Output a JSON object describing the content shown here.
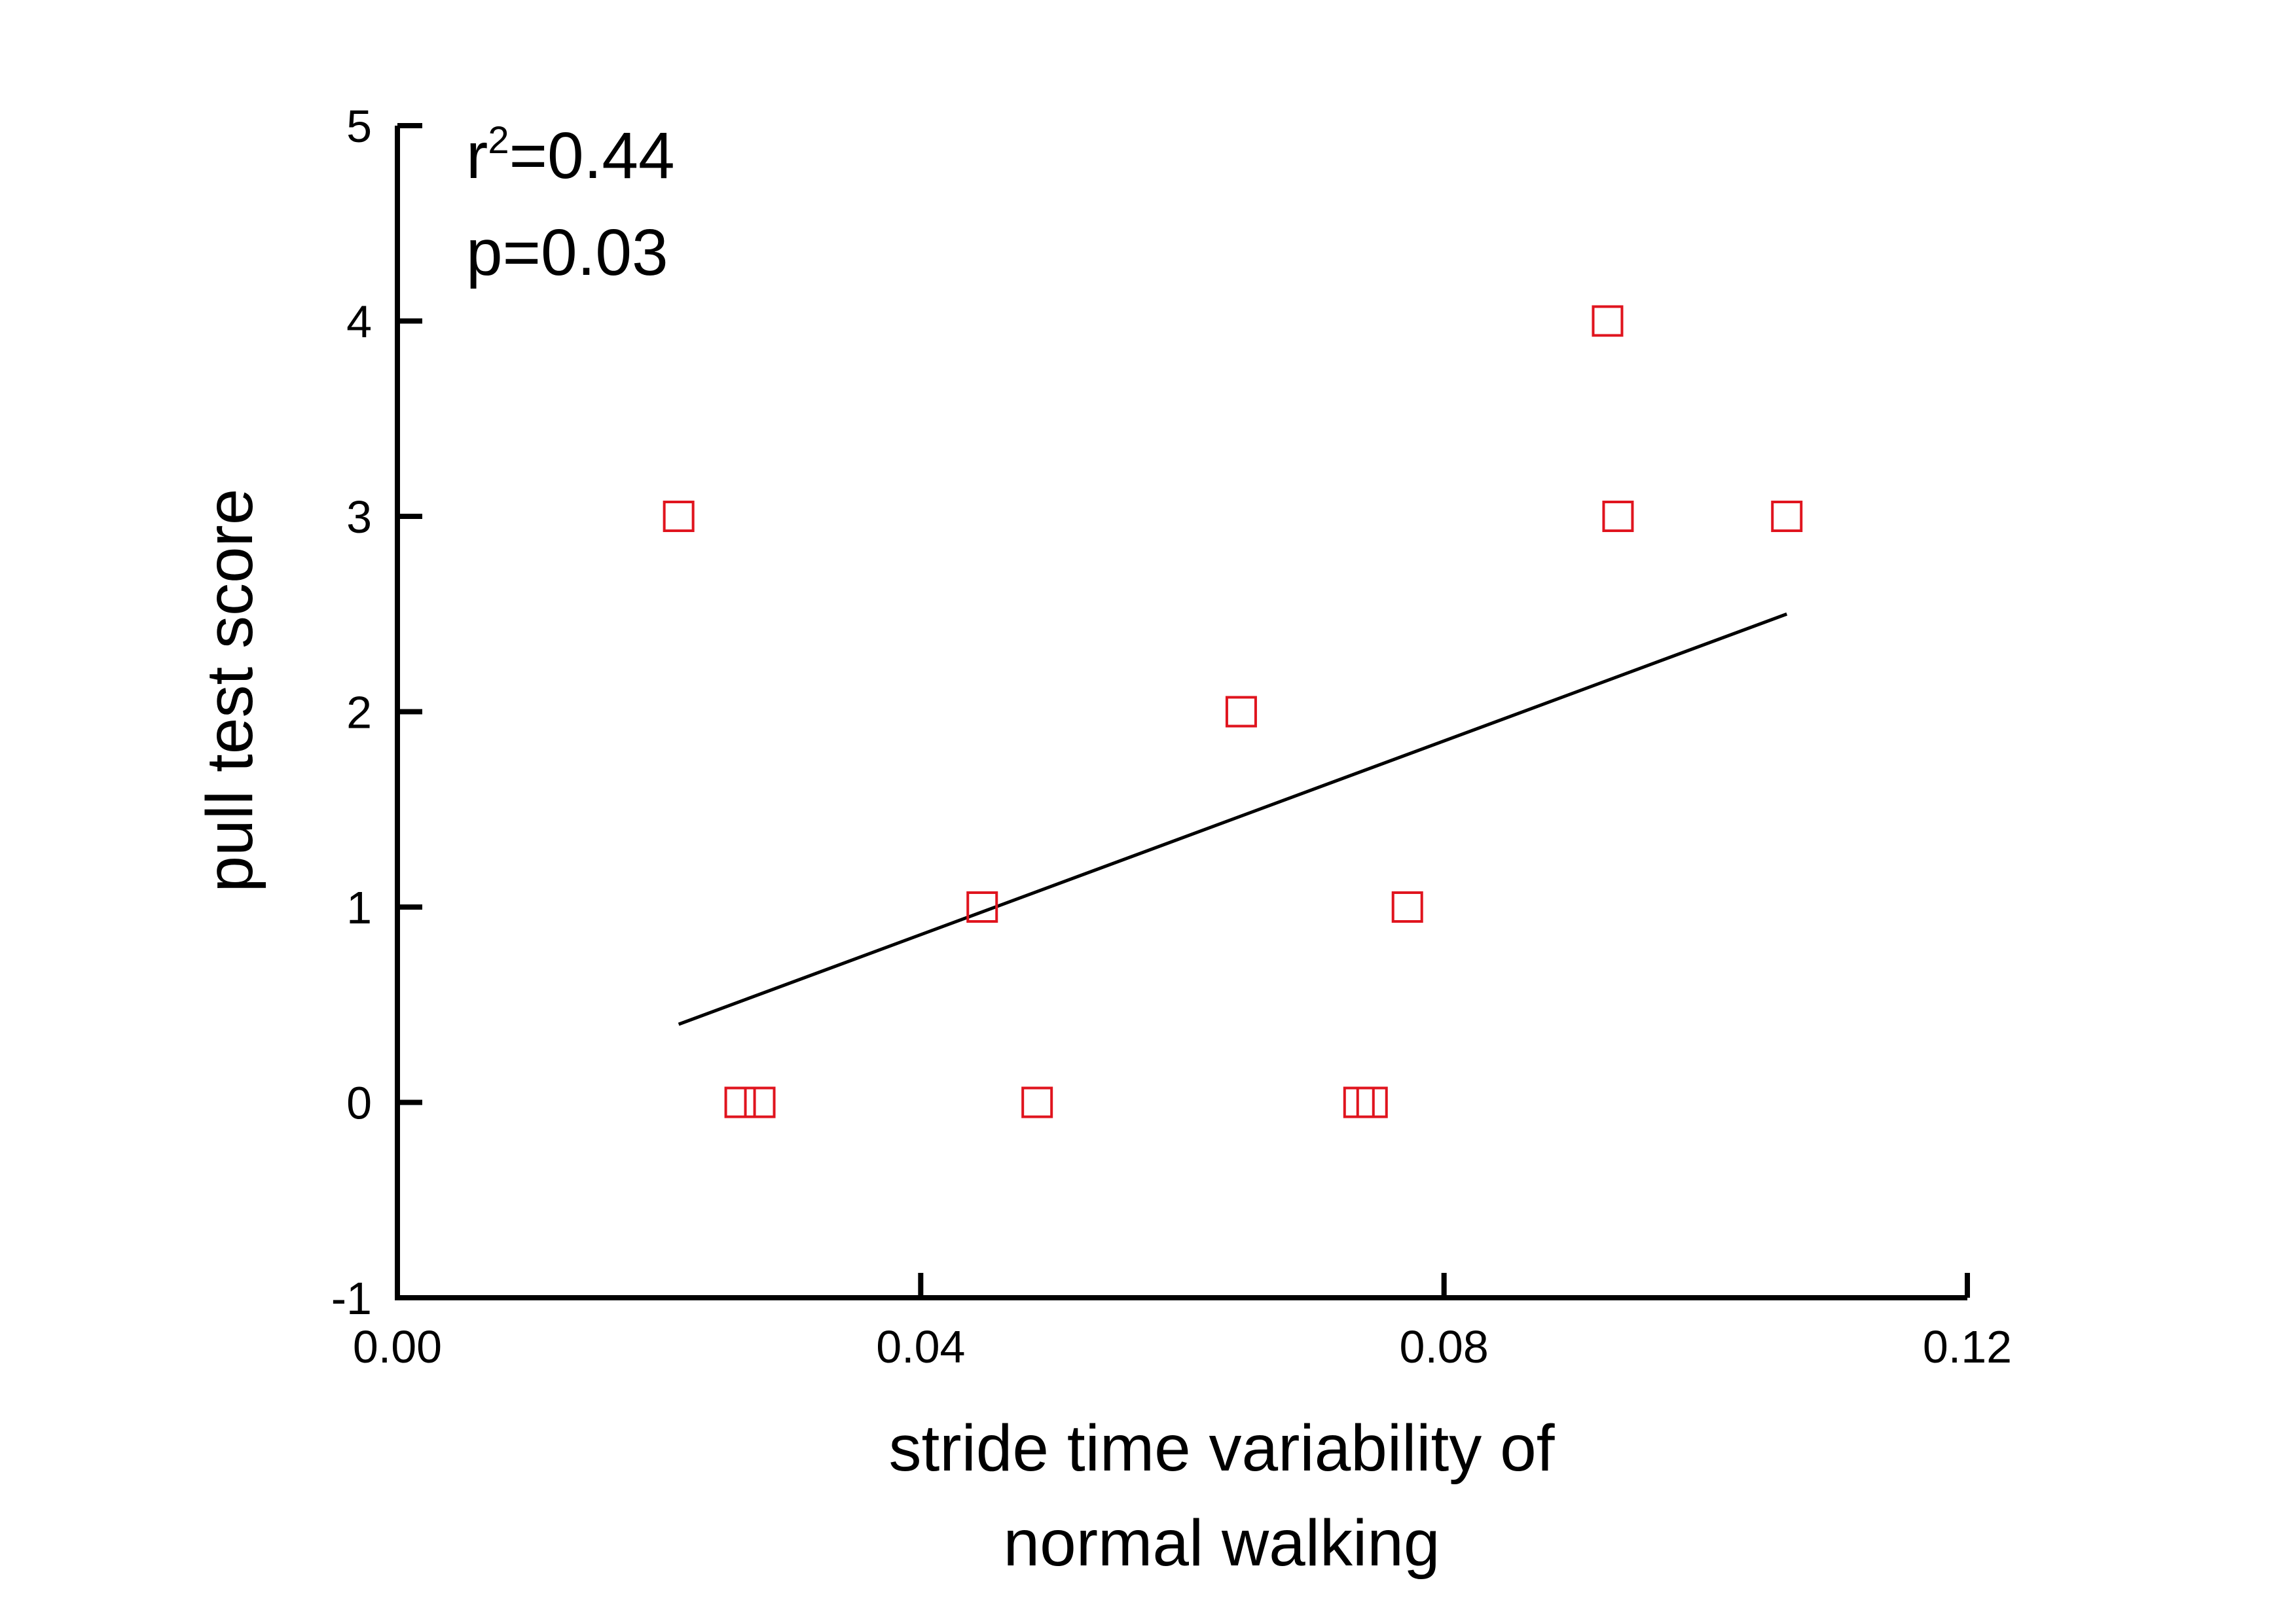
{
  "chart_data": {
    "type": "scatter",
    "title": "",
    "xlabel_lines": [
      "stride time variability of",
      "normal walking"
    ],
    "ylabel": "pull test score",
    "xlim": [
      0,
      0.12
    ],
    "ylim": [
      -1,
      5
    ],
    "x_ticks": [
      "0.00",
      "0.04",
      "0.08",
      "0.12"
    ],
    "y_ticks": [
      "-1",
      "0",
      "1",
      "2",
      "3",
      "4",
      "5"
    ],
    "grid": false,
    "legend": "none",
    "marker": "open-square",
    "marker_color": "#e0141e",
    "line_color": "#000000",
    "series": [
      {
        "points": [
          {
            "x": 0.0215,
            "y": 3
          },
          {
            "x": 0.0262,
            "y": 0
          },
          {
            "x": 0.0277,
            "y": 0
          },
          {
            "x": 0.0447,
            "y": 1
          },
          {
            "x": 0.0489,
            "y": 0
          },
          {
            "x": 0.0645,
            "y": 2
          },
          {
            "x": 0.0735,
            "y": 0
          },
          {
            "x": 0.0745,
            "y": 0
          },
          {
            "x": 0.0772,
            "y": 1
          },
          {
            "x": 0.0925,
            "y": 4
          },
          {
            "x": 0.0933,
            "y": 3
          },
          {
            "x": 0.1062,
            "y": 3
          }
        ]
      }
    ],
    "fit_line": {
      "x": [
        0.0215,
        0.1062
      ],
      "y": [
        0.4,
        2.5
      ]
    },
    "annotations": {
      "r_base": "r",
      "r_sup": "2",
      "r_value": "=0.44",
      "p_text": "p=0.03"
    }
  }
}
